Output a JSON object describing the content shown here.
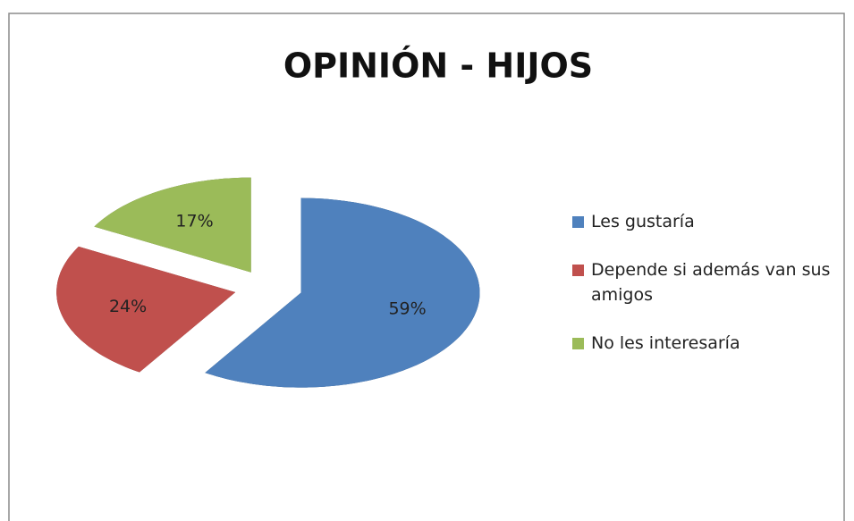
{
  "chart_data": {
    "type": "pie",
    "title": "OPINIÓN - HIJOS",
    "categories": [
      "Les gustaría",
      "Depende si además van sus amigos",
      "No les interesaría"
    ],
    "values": [
      59,
      24,
      17
    ],
    "value_labels": [
      "59%",
      "24%",
      "17%"
    ],
    "colors": [
      "#4f81bd",
      "#c0504d",
      "#9bbb59"
    ],
    "legend": "right"
  }
}
